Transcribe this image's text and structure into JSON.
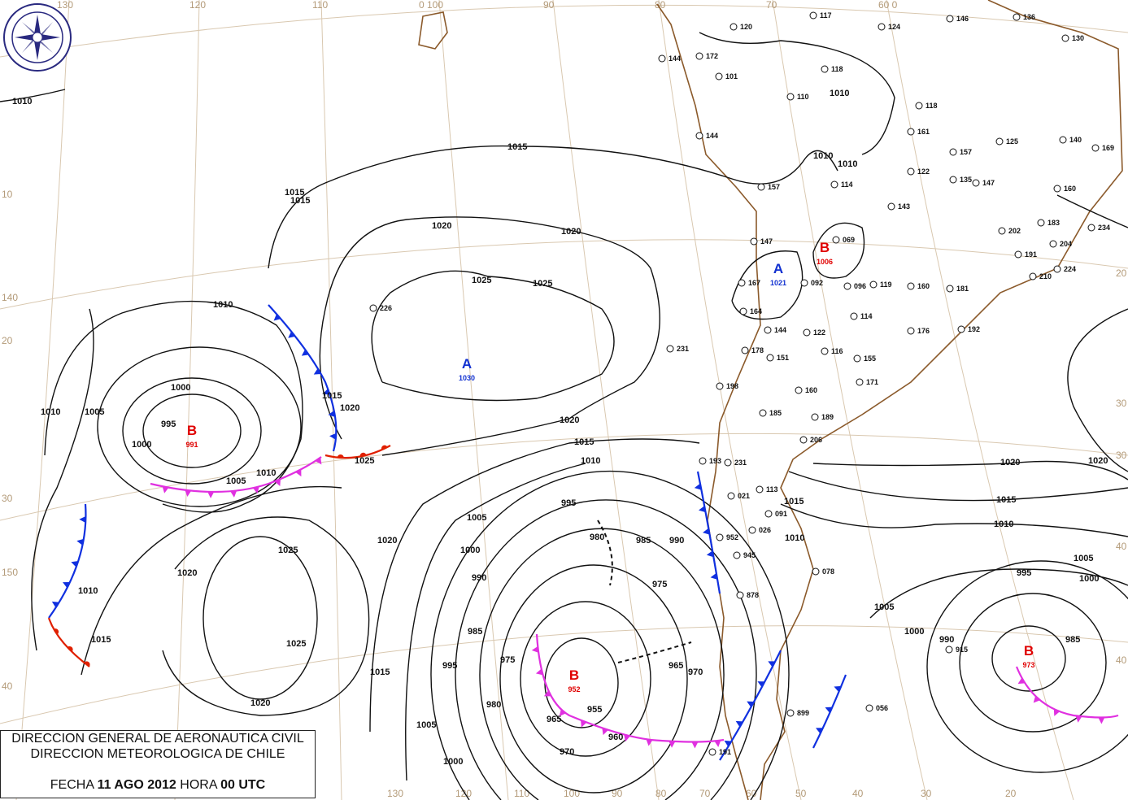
{
  "logo": {
    "text": "DIRECCION METEOROLOGICA CHILE"
  },
  "caption": {
    "line1": "DIRECCION GENERAL DE AERONAUTICA CIVIL",
    "line2": "DIRECCION METEOROLOGICA DE CHILE",
    "fecha_label": "FECHA",
    "date": "11 AGO 2012",
    "hora_label": "HORA",
    "time": "00 UTC"
  },
  "graticule": {
    "top": [
      "130",
      "120",
      "110",
      "0 100",
      "90",
      "80",
      "70",
      "60 0"
    ],
    "bottom": [
      "130",
      "120",
      "110",
      "100",
      "90",
      "80",
      "70",
      "60",
      "50",
      "40",
      "30",
      "20"
    ],
    "left": [
      "10",
      "140",
      "20",
      "30",
      "150",
      "40"
    ],
    "right": [
      "20",
      "30",
      "30",
      "40",
      "40"
    ]
  },
  "centers": [
    {
      "type": "B",
      "value": "991",
      "color": "#e00000"
    },
    {
      "type": "B",
      "value": "952",
      "color": "#e00000"
    },
    {
      "type": "A",
      "value": "1030",
      "color": "#1030d0"
    },
    {
      "type": "A",
      "value": "1021",
      "color": "#1030d0"
    },
    {
      "type": "B",
      "value": "1006",
      "color": "#e00000"
    },
    {
      "type": "B",
      "value": "973",
      "color": "#e00000"
    }
  ],
  "isobar_labels": [
    "1010",
    "1015",
    "1015",
    "1020",
    "1020",
    "1025",
    "1025",
    "1010",
    "1000",
    "995",
    "1005",
    "1000",
    "1010",
    "1005",
    "1010",
    "1020",
    "1015",
    "1025",
    "1020",
    "1015",
    "1010",
    "1005",
    "995",
    "980",
    "985",
    "990",
    "975",
    "965",
    "970",
    "1000",
    "995",
    "990",
    "985",
    "975",
    "980",
    "1005",
    "1000",
    "955",
    "960",
    "965",
    "970",
    "1015",
    "1020",
    "1025",
    "1020",
    "1015",
    "1010",
    "1025",
    "1015",
    "1020",
    "1010",
    "1005",
    "1000",
    "995",
    "990",
    "985",
    "1010",
    "1005",
    "1000",
    "1015",
    "1010",
    "1015",
    "1020",
    "1010",
    "1010",
    "1020"
  ],
  "stations": [
    "144",
    "172",
    "101",
    "120",
    "117",
    "124",
    "146",
    "136",
    "130",
    "118",
    "110",
    "118",
    "161",
    "157",
    "125",
    "140",
    "169",
    "144",
    "157",
    "114",
    "122",
    "135",
    "147",
    "160",
    "143",
    "183",
    "191",
    "202",
    "204",
    "210",
    "224",
    "234",
    "069",
    "147",
    "167",
    "092",
    "096",
    "119",
    "160",
    "181",
    "164",
    "144",
    "122",
    "114",
    "176",
    "192",
    "226",
    "231",
    "178",
    "151",
    "116",
    "155",
    "171",
    "198",
    "160",
    "185",
    "189",
    "206",
    "193",
    "231",
    "113",
    "091",
    "021",
    "026",
    "952",
    "945",
    "878",
    "078",
    "915",
    "899",
    "056",
    "191"
  ],
  "colors": {
    "isobar": "#111111",
    "cold_front": "#1030e0",
    "warm_front": "#e02000",
    "occluded_front": "#e030e0",
    "coast": "#8b5a2b",
    "graticule": "#d9c8b0"
  }
}
